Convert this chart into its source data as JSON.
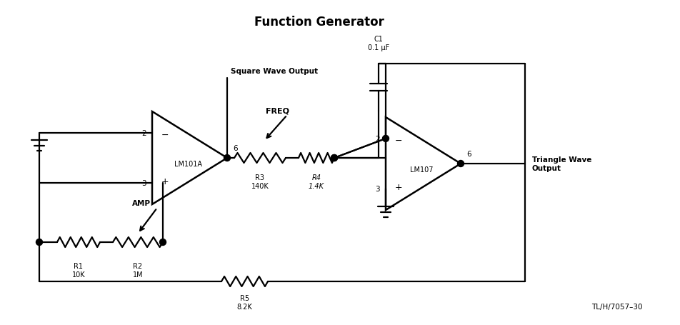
{
  "title": "Function Generator",
  "title_fontsize": 12,
  "title_fontweight": "bold",
  "background_color": "#ffffff",
  "line_color": "#000000",
  "line_width": 1.6,
  "fig_width": 9.53,
  "fig_height": 4.56,
  "labels": {
    "square_wave_output": "Square Wave Output",
    "triangle_wave_output": "Triangle Wave\nOutput",
    "freq": "FREQ",
    "amp": "AMP",
    "lm101a": "LM101A",
    "lm107": "LM107",
    "r1": "R1\n10K",
    "r2": "R2\n1M",
    "r3": "R3\n140K",
    "r4": "R4\n1.4K",
    "r5": "R5\n8.2K",
    "c1": "C1\n0.1 μF",
    "tl": "TL/H/7057–30",
    "pin2": "2",
    "pin3": "3",
    "pin6": "6"
  }
}
